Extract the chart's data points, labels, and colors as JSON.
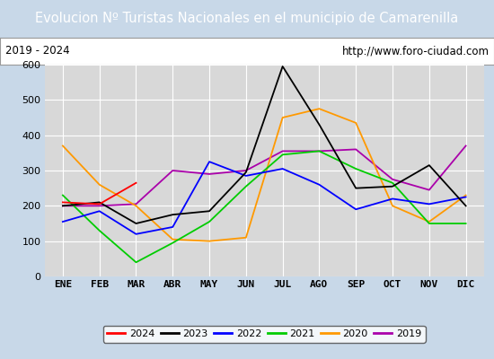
{
  "title": "Evolucion Nº Turistas Nacionales en el municipio de Camarenilla",
  "subtitle_left": "2019 - 2024",
  "subtitle_right": "http://www.foro-ciudad.com",
  "months": [
    "ENE",
    "FEB",
    "MAR",
    "ABR",
    "MAY",
    "JUN",
    "JUL",
    "AGO",
    "SEP",
    "OCT",
    "NOV",
    "DIC"
  ],
  "ylim": [
    0,
    600
  ],
  "yticks": [
    0,
    100,
    200,
    300,
    400,
    500,
    600
  ],
  "series": {
    "2024": {
      "color": "#ff0000",
      "values": [
        210,
        205,
        265,
        null,
        null,
        null,
        null,
        null,
        null,
        null,
        null,
        null
      ]
    },
    "2023": {
      "color": "#000000",
      "values": [
        200,
        210,
        150,
        175,
        185,
        295,
        595,
        430,
        250,
        255,
        315,
        200
      ]
    },
    "2022": {
      "color": "#0000ff",
      "values": [
        155,
        185,
        120,
        140,
        325,
        285,
        305,
        260,
        190,
        220,
        205,
        225
      ]
    },
    "2021": {
      "color": "#00cc00",
      "values": [
        230,
        130,
        40,
        95,
        155,
        255,
        345,
        355,
        305,
        265,
        150,
        150
      ]
    },
    "2020": {
      "color": "#ff9900",
      "values": [
        370,
        260,
        200,
        105,
        100,
        110,
        450,
        475,
        435,
        200,
        155,
        230
      ]
    },
    "2019": {
      "color": "#aa00aa",
      "values": [
        200,
        200,
        205,
        300,
        290,
        300,
        355,
        355,
        360,
        275,
        245,
        370
      ]
    }
  },
  "legend_order": [
    "2024",
    "2023",
    "2022",
    "2021",
    "2020",
    "2019"
  ],
  "outer_bg_color": "#c8d8e8",
  "plot_bg_color": "#d8d8d8",
  "title_bg_color": "#4472c4",
  "title_text_color": "#ffffff",
  "subtitle_bg_color": "#ffffff",
  "grid_color": "#ffffff",
  "title_fontsize": 10.5,
  "subtitle_fontsize": 8.5,
  "tick_fontsize": 8
}
